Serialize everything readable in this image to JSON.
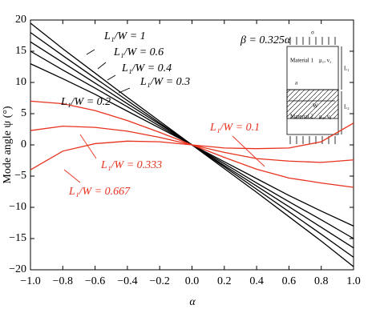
{
  "chart_data": {
    "type": "line",
    "x_label": "α",
    "y_label": "Mode angle ψ (°)",
    "x": [
      -1.0,
      -0.8,
      -0.6,
      -0.4,
      -0.2,
      0.0,
      0.2,
      0.4,
      0.6,
      0.8,
      1.0
    ],
    "series": [
      {
        "name": "L₁/W = 1",
        "color": "#000000",
        "values": [
          19.5,
          15.4,
          11.5,
          7.6,
          3.8,
          0,
          -3.8,
          -7.6,
          -11.5,
          -15.4,
          -19.5
        ]
      },
      {
        "name": "L₁/W = 0.6",
        "color": "#000000",
        "values": [
          18,
          14.3,
          10.7,
          7.1,
          3.5,
          0,
          -3.5,
          -7.1,
          -10.7,
          -14.3,
          -18
        ]
      },
      {
        "name": "L₁/W = 0.4",
        "color": "#000000",
        "values": [
          16.5,
          13.2,
          9.9,
          6.6,
          3.3,
          0,
          -3.3,
          -6.6,
          -9.9,
          -13.2,
          -16.5
        ]
      },
      {
        "name": "L₁/W = 0.3",
        "color": "#000000",
        "values": [
          15,
          12,
          9.1,
          6.1,
          3,
          0,
          -3,
          -6.1,
          -9.1,
          -12,
          -15
        ]
      },
      {
        "name": "L₁/W = 0.2",
        "color": "#000000",
        "values": [
          13,
          10.6,
          8.1,
          5.4,
          2.7,
          0,
          -2.7,
          -5.4,
          -8.1,
          -10.6,
          -13
        ]
      },
      {
        "name": "L₁/W = 0.1",
        "color": "#e8321e",
        "values": [
          7,
          6.6,
          5.5,
          3.9,
          2,
          0,
          -2,
          -3.9,
          -5.3,
          -6.1,
          -6.8
        ]
      },
      {
        "name": "L₁/W = 0.333",
        "color": "#e8321e",
        "values": [
          2.3,
          3,
          2.8,
          2.2,
          1.2,
          0,
          -1.2,
          -2.2,
          -2.6,
          -2.8,
          -2.4
        ]
      },
      {
        "name": "L₁/W = 0.667",
        "color": "#e8321e",
        "values": [
          -4,
          -1,
          0.2,
          0.6,
          0.5,
          0,
          -0.5,
          -0.6,
          -0.5,
          0.5,
          3.5
        ]
      }
    ],
    "annotation": "β = 0.325α",
    "xlim": [
      -1.0,
      1.0
    ],
    "xticks": [
      {
        "value": -1.0,
        "label": "−1.0"
      },
      {
        "value": -0.8,
        "label": "−0.8"
      },
      {
        "value": -0.6,
        "label": "−0.6"
      },
      {
        "value": -0.4,
        "label": "−0.4"
      },
      {
        "value": -0.2,
        "label": "−0.2"
      },
      {
        "value": 0.0,
        "label": "0.0"
      },
      {
        "value": 0.2,
        "label": "0.2"
      },
      {
        "value": 0.4,
        "label": "0.4"
      },
      {
        "value": 0.6,
        "label": "0.6"
      },
      {
        "value": 0.8,
        "label": "0.8"
      },
      {
        "value": 1.0,
        "label": "1.0"
      }
    ],
    "ylim": [
      -20,
      20
    ],
    "yticks": [
      {
        "value": -20,
        "label": "−20"
      },
      {
        "value": -15,
        "label": "−15"
      },
      {
        "value": -10,
        "label": "−10"
      },
      {
        "value": -5,
        "label": "−5"
      },
      0,
      5,
      10,
      15,
      20
    ],
    "grid": false
  },
  "inset": {
    "material_1": "Material 1",
    "material_2": "Material 2",
    "props_1": "μ₁, ν₁",
    "props_2": "μ₂, ν₂",
    "length_1": "L₁",
    "length_2": "L₂",
    "load": "σ",
    "crack": "a",
    "width": "W"
  }
}
